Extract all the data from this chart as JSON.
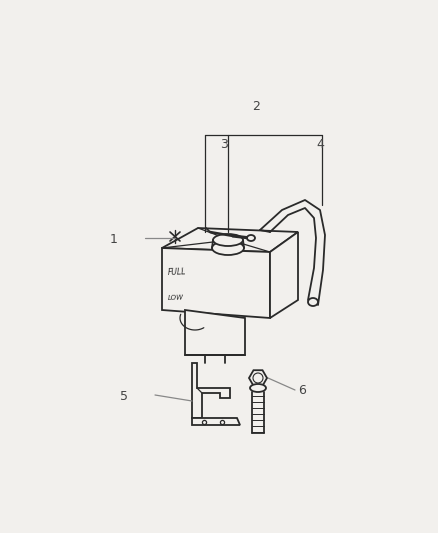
{
  "background_color": "#f2f0ed",
  "line_color": "#2a2a2a",
  "label_color": "#444444",
  "leader_color": "#888888",
  "fig_width": 4.38,
  "fig_height": 5.33,
  "dpi": 100
}
